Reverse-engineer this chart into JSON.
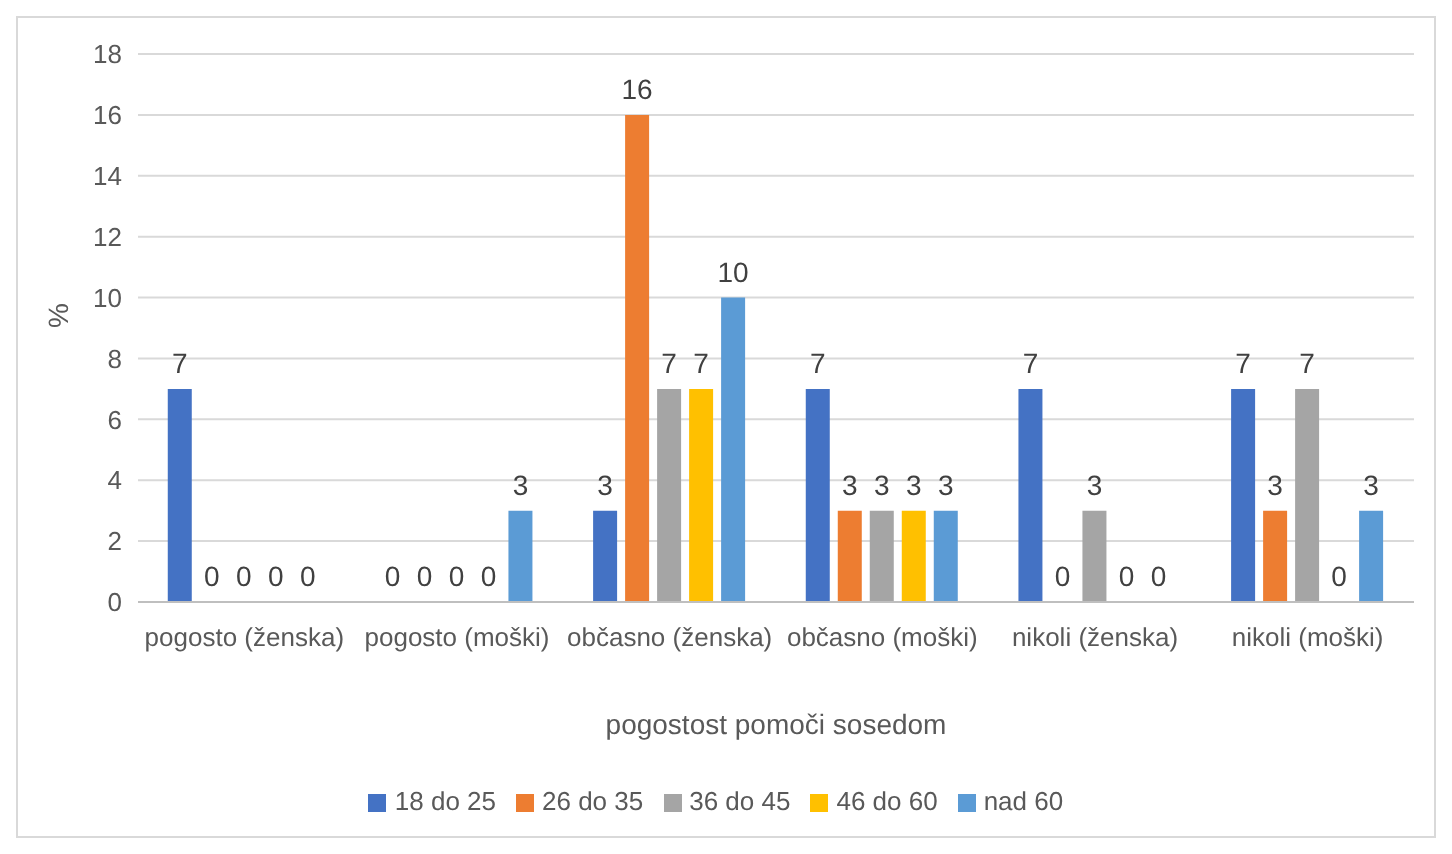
{
  "chart_data": {
    "type": "bar",
    "ylabel": "%",
    "xlabel": "pogostost pomoči sosedom",
    "categories": [
      "pogosto (ženska)",
      "pogosto (moški)",
      "občasno (ženska)",
      "občasno (moški)",
      "nikoli (ženska)",
      "nikoli (moški)"
    ],
    "series": [
      {
        "name": "18 do 25",
        "color": "#4472c4",
        "values": [
          7,
          0,
          3,
          7,
          7,
          7
        ]
      },
      {
        "name": "26 do 35",
        "color": "#ed7d31",
        "values": [
          0,
          0,
          16,
          3,
          0,
          3
        ]
      },
      {
        "name": "36 do 45",
        "color": "#a5a5a5",
        "values": [
          0,
          0,
          7,
          3,
          3,
          7
        ]
      },
      {
        "name": "46 do 60",
        "color": "#ffc000",
        "values": [
          0,
          0,
          7,
          3,
          0,
          0
        ]
      },
      {
        "name": "nad 60",
        "color": "#5b9bd5",
        "values": [
          0,
          3,
          10,
          3,
          0,
          3
        ]
      }
    ],
    "ylim": [
      0,
      18
    ],
    "yticks": [
      0,
      2,
      4,
      6,
      8,
      10,
      12,
      14,
      16,
      18
    ],
    "grid": "y",
    "legend": "bottom",
    "data_labels": true
  }
}
